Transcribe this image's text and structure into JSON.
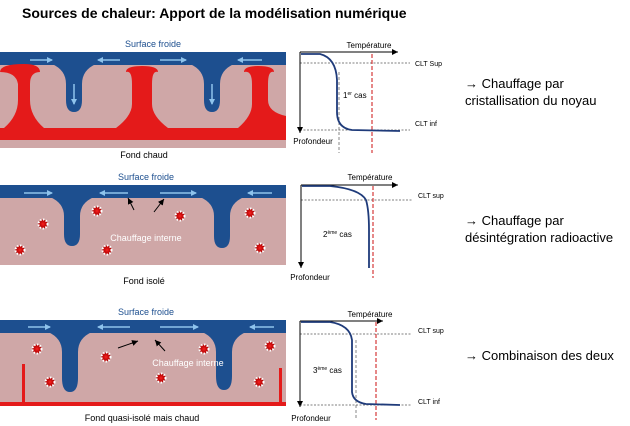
{
  "title": "Sources de chaleur: Apport de la modélisation numérique",
  "colors": {
    "mantle": "#cfa7a7",
    "cold": "#1d4f8f",
    "hot": "#e41a1a",
    "flow_arrow": "#8ec3ec",
    "profile": "#1f3b7a",
    "dashed_ref": "#cc1111"
  },
  "panels": [
    {
      "top_label": "Surface froide",
      "bottom_label": "Fond chaud",
      "inner_label": "",
      "profile": {
        "axis_temp": "Température",
        "axis_depth": "Profondeur",
        "case_number": "1",
        "case_sup": "er",
        "case_word": "cas",
        "clt_top": "CLT Sup",
        "clt_bottom": "CLT inf"
      },
      "result_text": [
        "→ Chauffage par",
        "cristallisation du noyau"
      ]
    },
    {
      "top_label": "Surface froide",
      "bottom_label": "Fond isolé",
      "inner_label": "Chauffage interne",
      "profile": {
        "axis_temp": "Température",
        "axis_depth": "Profondeur",
        "case_number": "2",
        "case_sup": "ème",
        "case_word": "cas",
        "clt_top": "CLT sup",
        "clt_bottom": ""
      },
      "result_text": [
        "→ Chauffage par",
        "désintégration radioactive"
      ]
    },
    {
      "top_label": "Surface froide",
      "bottom_label": "Fond quasi-isolé mais chaud",
      "inner_label": "Chauffage interne",
      "profile": {
        "axis_temp": "Température",
        "axis_depth": "Profondeur",
        "case_number": "3",
        "case_sup": "ème",
        "case_word": "cas",
        "clt_top": "CLT sup",
        "clt_bottom": "CLT inf"
      },
      "result_text": [
        "→ Combinaison des deux"
      ]
    }
  ]
}
